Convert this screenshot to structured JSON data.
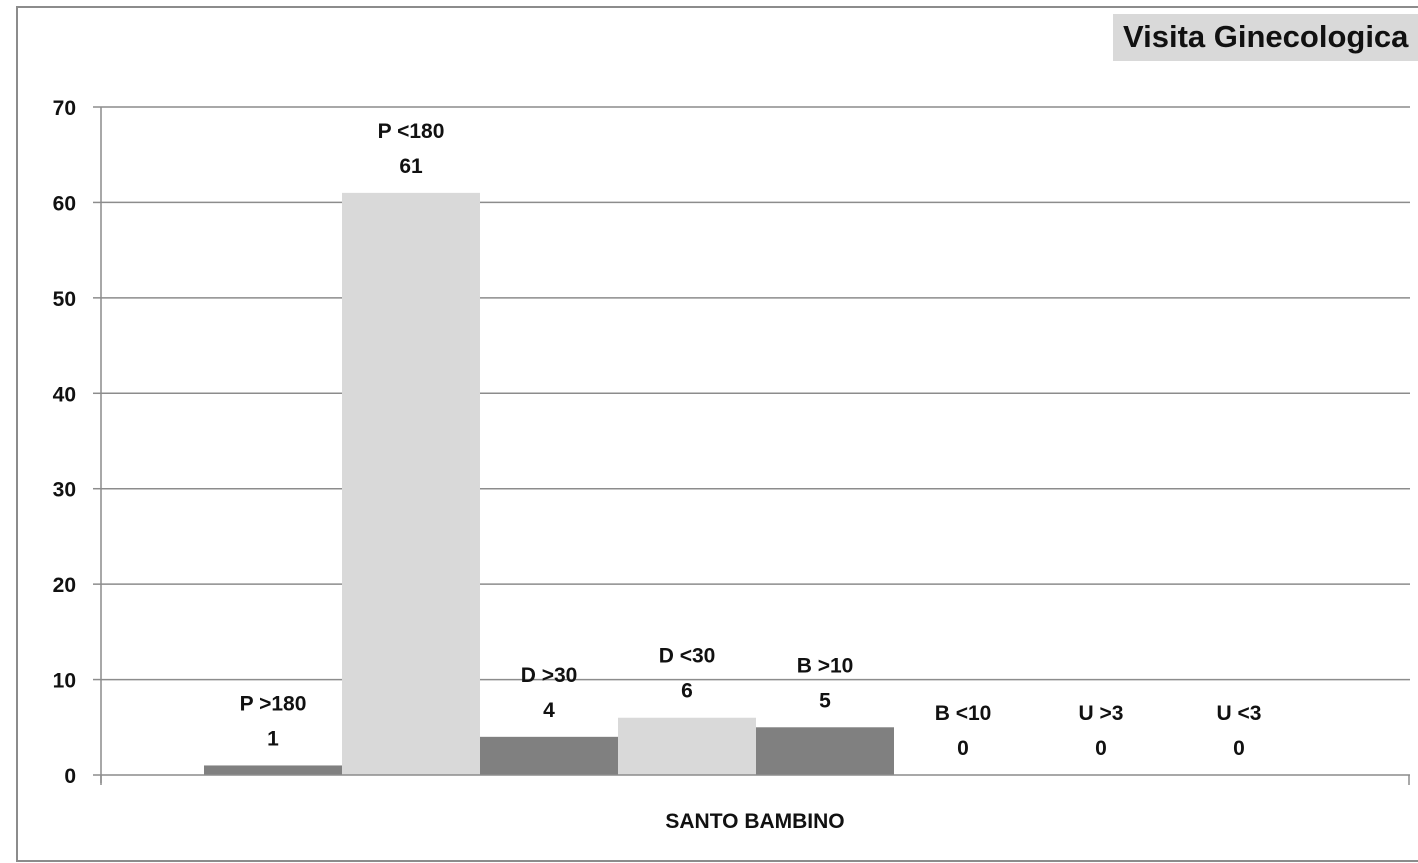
{
  "chart_data": {
    "type": "bar",
    "title": "Visita Ginecologica",
    "category": "SANTO BAMBINO",
    "xlabel": "",
    "ylabel": "",
    "ylim": [
      0,
      70
    ],
    "yticks": [
      0,
      10,
      20,
      30,
      40,
      50,
      60,
      70
    ],
    "grid": true,
    "legend": "none",
    "bars": [
      {
        "label": "P  >180",
        "value": 1,
        "color": "#808080"
      },
      {
        "label": "P  <180",
        "value": 61,
        "color": "#d9d9d9"
      },
      {
        "label": "D  >30",
        "value": 4,
        "color": "#808080"
      },
      {
        "label": "D  <30",
        "value": 6,
        "color": "#d9d9d9"
      },
      {
        "label": "B  >10",
        "value": 5,
        "color": "#808080"
      },
      {
        "label": "B  <10",
        "value": 0,
        "color": "#d9d9d9"
      },
      {
        "label": "U  >3",
        "value": 0,
        "color": "#808080"
      },
      {
        "label": "U  <3",
        "value": 0,
        "color": "#d9d9d9"
      }
    ]
  }
}
